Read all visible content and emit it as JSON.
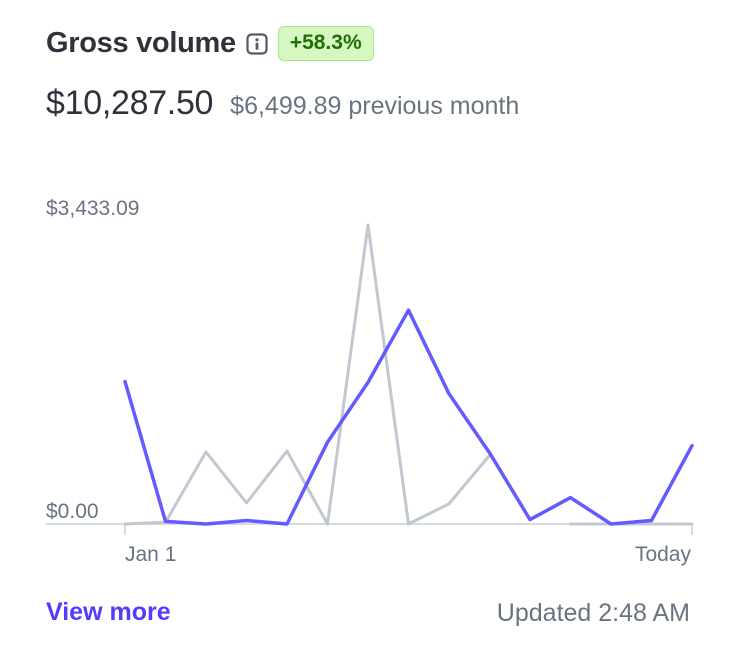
{
  "header": {
    "title": "Gross volume",
    "info_icon": "info-icon",
    "change_badge": "+58.3%",
    "badge_color": "#d7f7c2",
    "badge_text_color": "#217005"
  },
  "summary": {
    "amount": "$10,287.50",
    "previous": "$6,499.89 previous month"
  },
  "chart_data": {
    "type": "line",
    "ylim": [
      0,
      3433.09
    ],
    "y_tick_labels": [
      "$3,433.09",
      "$0.00"
    ],
    "x_tick_labels": [
      "Jan 1",
      "Today"
    ],
    "grid": false,
    "series": [
      {
        "color": "#635bff",
        "values": [
          1620,
          30,
          0,
          40,
          0,
          930,
          1610,
          2430,
          1480,
          810,
          50,
          300,
          0,
          40,
          890
        ]
      },
      {
        "color": "#c0c8d2",
        "values": [
          0,
          20,
          820,
          240,
          830,
          0,
          3400,
          0,
          230,
          780,
          null,
          0,
          0,
          0,
          0
        ]
      }
    ]
  },
  "footer": {
    "view_more": "View more",
    "updated": "Updated 2:48 AM",
    "link_color": "#533afd"
  }
}
